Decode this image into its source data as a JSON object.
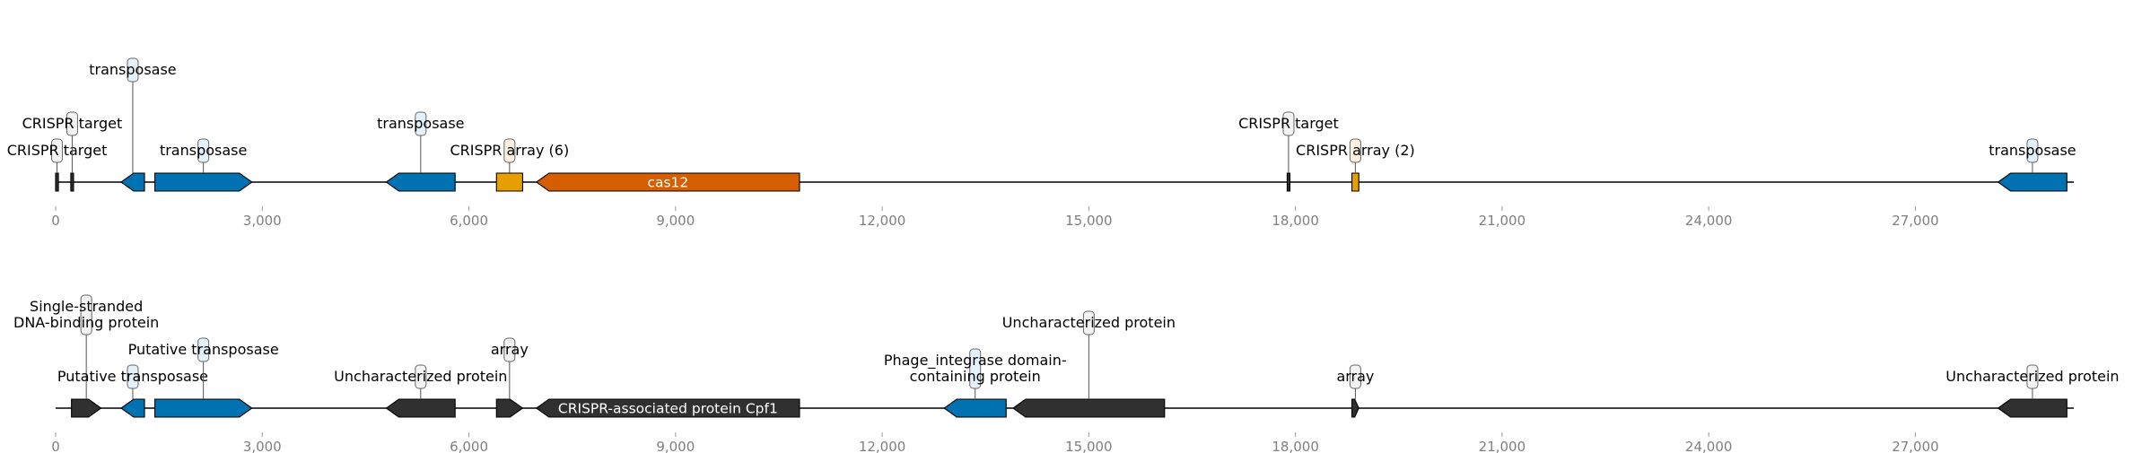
{
  "colors": {
    "transposase": "#0072b2",
    "crispr_array": "#e69f00",
    "cas12": "#d55e00",
    "dark": "#303030",
    "box_blue_fill": "#e3f1fb",
    "box_orange_fill": "#fdf2e0",
    "box_gray_fill": "#f3f3f3",
    "box_border": "#666666",
    "axis": "#000000",
    "tick_text": "#7f7f7f"
  },
  "axis": {
    "min": 0,
    "max": 29300,
    "ticks": [
      {
        "value": 0,
        "label": "0"
      },
      {
        "value": 3000,
        "label": "3,000"
      },
      {
        "value": 6000,
        "label": "6,000"
      },
      {
        "value": 9000,
        "label": "9,000"
      },
      {
        "value": 12000,
        "label": "12,000"
      },
      {
        "value": 15000,
        "label": "15,000"
      },
      {
        "value": 18000,
        "label": "18,000"
      },
      {
        "value": 21000,
        "label": "21,000"
      },
      {
        "value": 24000,
        "label": "24,000"
      },
      {
        "value": 27000,
        "label": "27,000"
      }
    ]
  },
  "tracks": [
    {
      "name": "top-track",
      "features": [
        {
          "name": "crispr-target-1",
          "start": 0,
          "end": 40,
          "strand": 0,
          "color": "dark",
          "label": "CRISPR target",
          "box": "gray",
          "level": 0
        },
        {
          "name": "crispr-target-2",
          "start": 220,
          "end": 260,
          "strand": 0,
          "color": "dark",
          "label": "CRISPR target",
          "box": "gray",
          "level": 1
        },
        {
          "name": "transposase-1",
          "start": 950,
          "end": 1290,
          "strand": -1,
          "color": "transposase",
          "label": "transposase",
          "box": "blue",
          "level": 3
        },
        {
          "name": "transposase-2",
          "start": 1440,
          "end": 2850,
          "strand": 1,
          "color": "transposase",
          "label": "transposase",
          "box": "blue",
          "level": 0
        },
        {
          "name": "transposase-3",
          "start": 4800,
          "end": 5800,
          "strand": -1,
          "color": "transposase",
          "label": "transposase",
          "box": "blue",
          "level": 1
        },
        {
          "name": "crispr-array-6",
          "start": 6400,
          "end": 6780,
          "strand": 0,
          "color": "crispr_array",
          "label": "CRISPR array (6)",
          "box": "orange",
          "level": 0
        },
        {
          "name": "cas12",
          "start": 6980,
          "end": 10800,
          "strand": -1,
          "color": "cas12",
          "inner_label": "cas12"
        },
        {
          "name": "crispr-target-3",
          "start": 17880,
          "end": 17920,
          "strand": 0,
          "color": "dark",
          "label": "CRISPR target",
          "box": "gray",
          "level": 1
        },
        {
          "name": "crispr-array-2",
          "start": 18820,
          "end": 18920,
          "strand": 0,
          "color": "crispr_array",
          "label": "CRISPR array (2)",
          "box": "orange",
          "level": 0
        },
        {
          "name": "transposase-4",
          "start": 28200,
          "end": 29200,
          "strand": -1,
          "color": "transposase",
          "label": "transposase",
          "box": "blue",
          "level": 0
        }
      ]
    },
    {
      "name": "bottom-track",
      "features": [
        {
          "name": "single-stranded-dna-binding",
          "start": 230,
          "end": 660,
          "strand": 1,
          "color": "dark",
          "label": "Single-stranded\nDNA-binding protein",
          "box": "gray",
          "level": 2
        },
        {
          "name": "putative-transposase-1",
          "start": 950,
          "end": 1290,
          "strand": -1,
          "color": "transposase",
          "label": "Putative transposase",
          "box": "blue",
          "level": 0
        },
        {
          "name": "putative-transposase-2",
          "start": 1440,
          "end": 2850,
          "strand": 1,
          "color": "transposase",
          "label": "Putative transposase",
          "box": "blue",
          "level": 1
        },
        {
          "name": "uncharacterized-protein-1",
          "start": 4800,
          "end": 5800,
          "strand": -1,
          "color": "dark",
          "label": "Uncharacterized protein",
          "box": "gray",
          "level": 0
        },
        {
          "name": "array-1",
          "start": 6400,
          "end": 6780,
          "strand": 1,
          "color": "dark",
          "label": "array",
          "box": "gray",
          "level": 1
        },
        {
          "name": "crispr-associated-cpf1",
          "start": 6980,
          "end": 10800,
          "strand": -1,
          "color": "dark",
          "inner_label": "CRISPR-associated protein Cpf1"
        },
        {
          "name": "phage-integrase",
          "start": 12900,
          "end": 13800,
          "strand": -1,
          "color": "transposase",
          "label": "Phage_integrase domain-\ncontaining protein",
          "box": "blue",
          "level": 0
        },
        {
          "name": "uncharacterized-protein-2",
          "start": 13900,
          "end": 16100,
          "strand": -1,
          "color": "dark",
          "label": "Uncharacterized protein",
          "box": "gray",
          "level": 2
        },
        {
          "name": "array-2",
          "start": 18820,
          "end": 18920,
          "strand": 1,
          "color": "dark",
          "label": "array",
          "box": "gray",
          "level": 0
        },
        {
          "name": "uncharacterized-protein-3",
          "start": 28200,
          "end": 29200,
          "strand": -1,
          "color": "dark",
          "label": "Uncharacterized protein",
          "box": "gray",
          "level": 0
        }
      ]
    }
  ]
}
